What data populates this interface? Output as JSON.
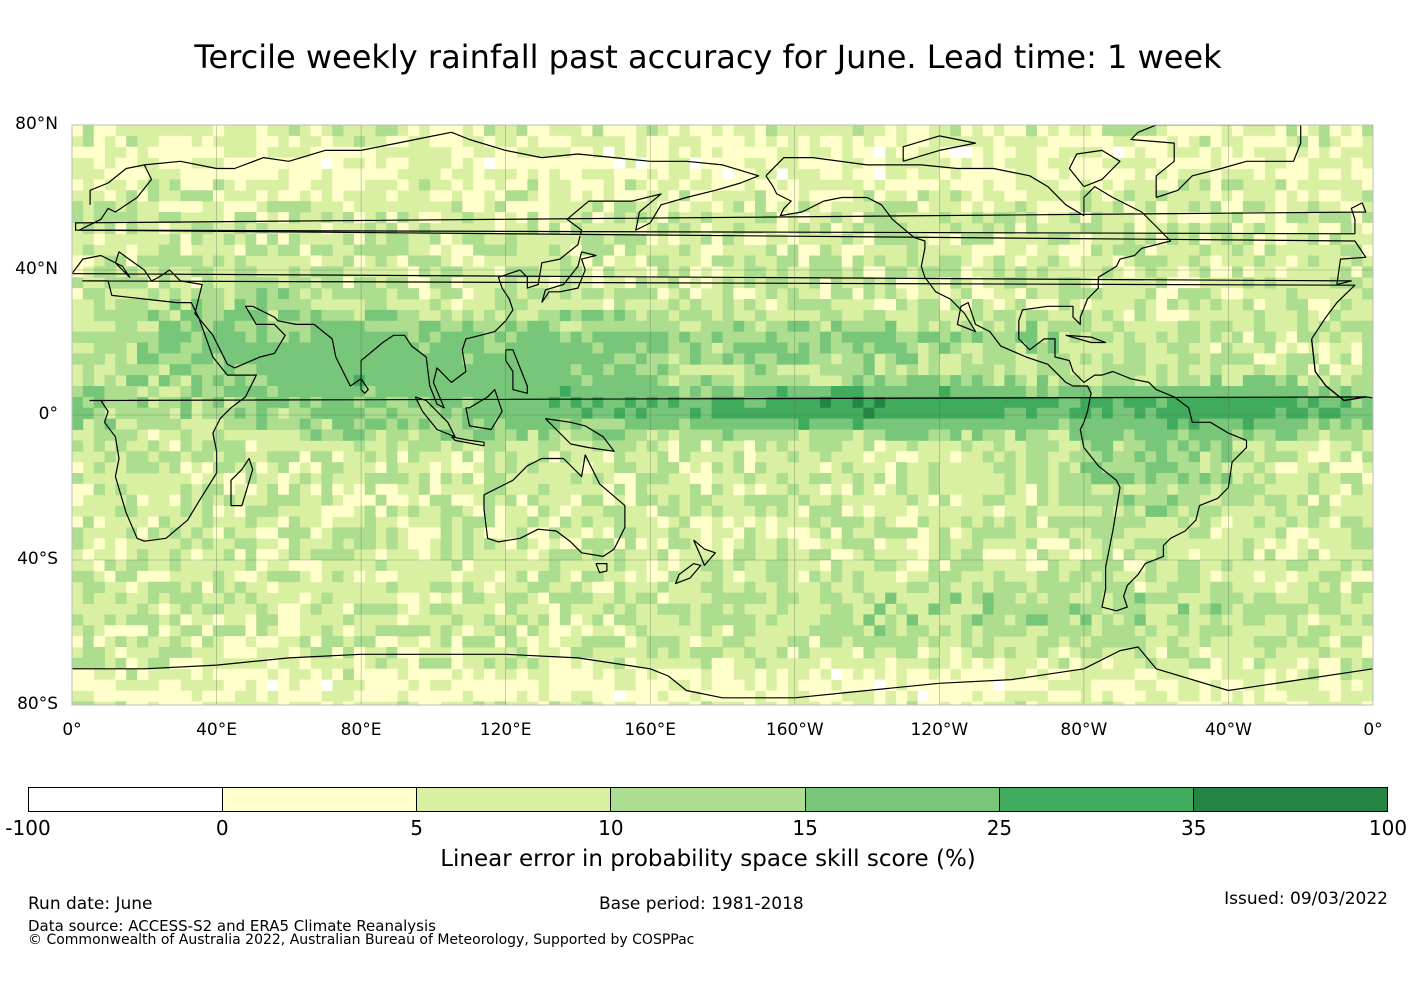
{
  "title": "Tercile weekly rainfall past accuracy for June. Lead time: 1 week",
  "map": {
    "lat_labels": [
      "80°N",
      "40°N",
      "0°",
      "40°S",
      "80°S"
    ],
    "lon_labels": [
      "0°",
      "40°E",
      "80°E",
      "120°E",
      "160°E",
      "160°W",
      "120°W",
      "80°W",
      "40°W",
      "0°"
    ],
    "extent": {
      "lon_min": 0,
      "lon_max": 360,
      "lat_min": -80,
      "lat_max": 80
    },
    "gridlines": true
  },
  "colorbar": {
    "label": "Linear error in probability space skill score (%)",
    "ticks": [
      "-100",
      "0",
      "5",
      "10",
      "15",
      "25",
      "35",
      "100"
    ],
    "colors": [
      "#ffffff",
      "#ffffcc",
      "#d9f0a3",
      "#addd8e",
      "#78c679",
      "#41ab5d",
      "#238443"
    ]
  },
  "footer": {
    "run_date": "Run date: June",
    "base_period": "Base period: 1981-2018",
    "issued": "Issued: 09/03/2022",
    "data_source": "Data source: ACCESS-S2 and ERA5 Climate Reanalysis",
    "copyright": "© Commonwealth of Australia 2022, Australian Bureau of Meteorology, Supported by COSPPac"
  }
}
